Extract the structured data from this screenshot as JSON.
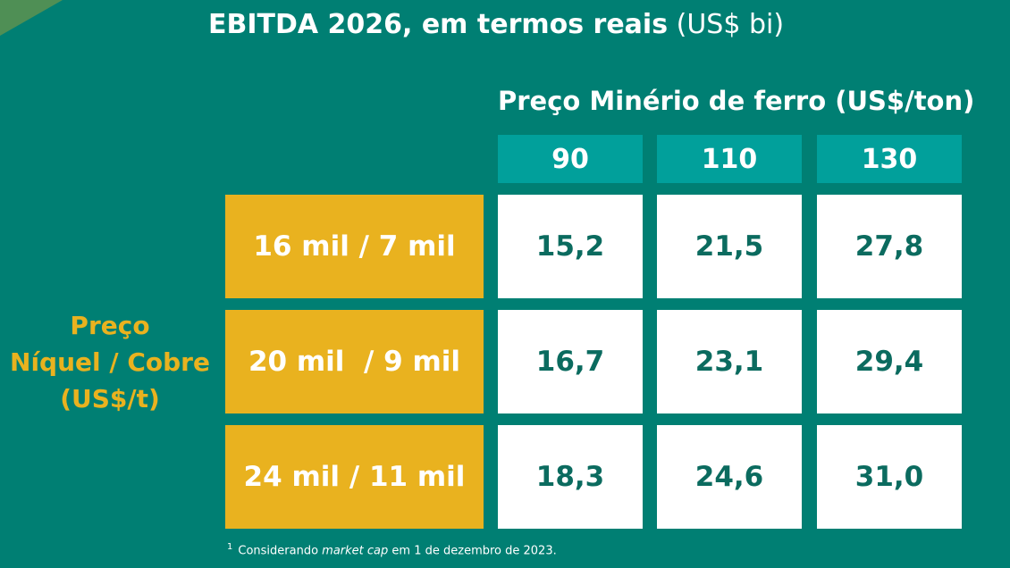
{
  "title": {
    "bold": "EBITDA 2026, em termos reais",
    "light": "(US$ bi)"
  },
  "chart_data": {
    "type": "table",
    "title": "EBITDA 2026, em termos reais (US$ bi)",
    "column_header": "Preço Minério de ferro (US$/ton)",
    "columns": [
      "90",
      "110",
      "130"
    ],
    "row_header": [
      "Preço",
      "Níquel / Cobre",
      "(US$/t)"
    ],
    "rows": [
      "16 mil / 7 mil",
      "20 mil  / 9 mil",
      "24 mil / 11 mil"
    ],
    "values": [
      [
        "15,2",
        "21,5",
        "27,8"
      ],
      [
        "16,7",
        "23,1",
        "29,4"
      ],
      [
        "18,3",
        "24,6",
        "31,0"
      ]
    ]
  },
  "footnote": {
    "marker": "1",
    "pre": "Considerando ",
    "italic": "market cap",
    "post": " em 1 de dezembro de 2023."
  },
  "colors": {
    "background": "#007f73",
    "header_accent": "#01a09b",
    "row_accent": "#e9b21f",
    "value_text": "#0b6b5f"
  }
}
